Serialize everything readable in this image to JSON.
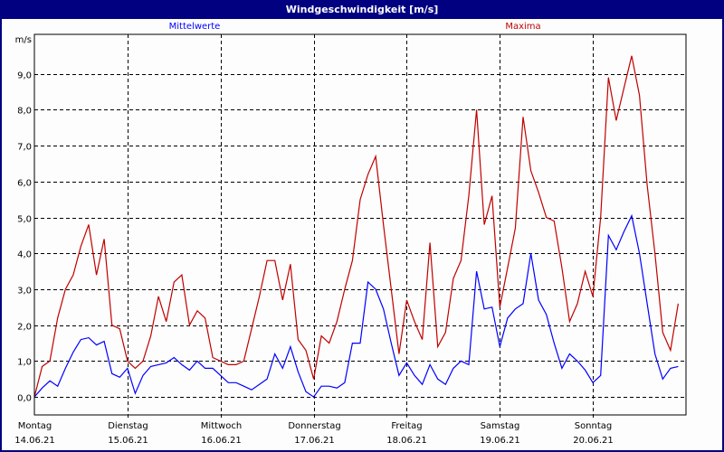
{
  "window": {
    "title": "Windgeschwindigkeit [m/s]"
  },
  "chart_data": {
    "type": "line",
    "title": "Windgeschwindigkeit [m/s]",
    "ylabel": "m/s",
    "ylim": [
      -0.5,
      10.1
    ],
    "yticks": [
      0,
      1,
      2,
      3,
      4,
      5,
      6,
      7,
      8,
      9
    ],
    "ytick_labels": [
      "0,0",
      "1,0",
      "2,0",
      "3,0",
      "4,0",
      "5,0",
      "6,0",
      "7,0",
      "8,0",
      "9,0"
    ],
    "grid": true,
    "legend_placement": "top",
    "hours": [
      0,
      2,
      4,
      6,
      8,
      10,
      12,
      14,
      16,
      18,
      20,
      22
    ],
    "days": [
      {
        "name": "Montag",
        "date": "14.06.21"
      },
      {
        "name": "Dienstag",
        "date": "15.06.21"
      },
      {
        "name": "Mittwoch",
        "date": "16.06.21"
      },
      {
        "name": "Donnerstag",
        "date": "17.06.21"
      },
      {
        "name": "Freitag",
        "date": "18.06.21"
      },
      {
        "name": "Samstag",
        "date": "19.06.21"
      },
      {
        "name": "Sonntag",
        "date": "20.06.21"
      }
    ],
    "series": [
      {
        "name": "Mittelwerte",
        "color": "#0000ff",
        "values": [
          [
            0.0,
            0.25,
            0.45,
            0.3,
            0.8,
            1.25,
            1.6,
            1.65,
            1.45,
            1.55,
            0.65,
            0.55
          ],
          [
            0.8,
            0.1,
            0.6,
            0.85,
            0.9,
            0.95,
            1.1,
            0.9,
            0.75,
            1.0,
            0.8,
            0.8
          ],
          [
            0.6,
            0.4,
            0.4,
            0.3,
            0.2,
            0.35,
            0.5,
            1.2,
            0.8,
            1.4,
            0.7,
            0.15
          ],
          [
            0.0,
            0.3,
            0.3,
            0.25,
            0.4,
            1.5,
            1.5,
            3.2,
            3.0,
            2.45,
            1.5,
            0.6
          ],
          [
            0.95,
            0.6,
            0.35,
            0.9,
            0.5,
            0.35,
            0.8,
            1.0,
            0.9,
            3.5,
            2.45,
            2.5
          ],
          [
            1.4,
            2.2,
            2.45,
            2.6,
            4.0,
            2.7,
            2.3,
            1.5,
            0.8,
            1.2,
            1.0,
            0.75
          ],
          [
            0.4,
            0.6,
            4.5,
            4.1,
            4.6,
            5.05,
            4.0,
            2.6,
            1.2,
            0.5,
            0.8,
            0.85
          ]
        ]
      },
      {
        "name": "Maxima",
        "color": "#c00000",
        "values": [
          [
            0.0,
            0.85,
            1.0,
            2.2,
            3.0,
            3.4,
            4.2,
            4.8,
            3.4,
            4.4,
            2.0,
            1.9
          ],
          [
            1.0,
            0.8,
            1.0,
            1.7,
            2.8,
            2.1,
            3.2,
            3.4,
            2.0,
            2.4,
            2.2,
            1.1
          ],
          [
            1.0,
            0.9,
            0.9,
            1.0,
            1.9,
            2.8,
            3.8,
            3.8,
            2.7,
            3.7,
            1.6,
            1.3
          ],
          [
            0.5,
            1.7,
            1.5,
            2.1,
            3.0,
            3.8,
            5.5,
            6.2,
            6.7,
            4.8,
            3.0,
            1.2
          ],
          [
            2.7,
            2.1,
            1.6,
            4.3,
            1.4,
            1.8,
            3.3,
            3.8,
            5.6,
            8.0,
            4.8,
            5.6
          ],
          [
            2.5,
            3.6,
            4.7,
            7.8,
            6.3,
            5.7,
            5.0,
            4.9,
            3.6,
            2.1,
            2.6,
            3.5
          ],
          [
            2.8,
            5.0,
            8.9,
            7.7,
            8.6,
            9.5,
            8.4,
            5.9,
            4.0,
            1.8,
            1.3,
            2.6
          ]
        ]
      }
    ]
  }
}
